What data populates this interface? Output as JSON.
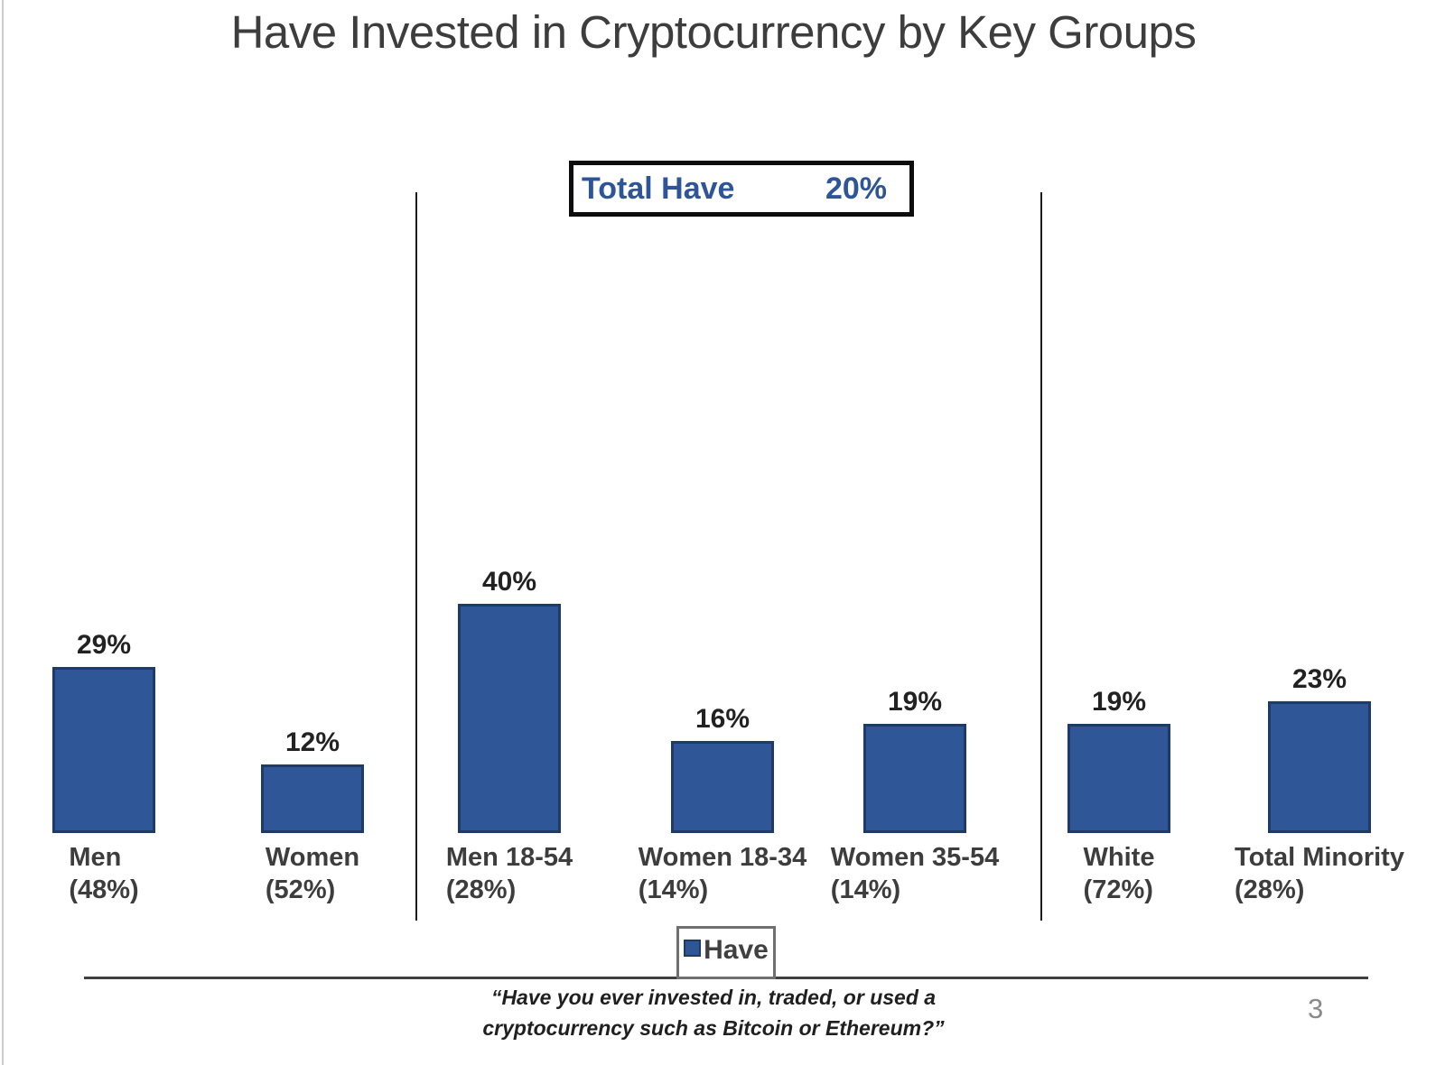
{
  "title": "Have Invested in Cryptocurrency by Key Groups",
  "summary_box": {
    "label": "Total Have",
    "value": "20%"
  },
  "legend": {
    "label": "Have",
    "swatch_color": "#2E5596"
  },
  "footnote": {
    "line1": "“Have you ever invested in, traded, or used a",
    "line2": "cryptocurrency such as Bitcoin or Ethereum?”"
  },
  "page_number": "3",
  "colors": {
    "bar_fill": "#2F5797",
    "bar_border": "#1E3A66",
    "accent_blue": "#2E5597",
    "title_text": "#3D3D3D"
  },
  "chart_data": {
    "type": "bar",
    "title": "Have Invested in Cryptocurrency by Key Groups",
    "xlabel": "",
    "ylabel": "",
    "ylim": [
      0,
      45
    ],
    "grid": false,
    "legend_position": "bottom",
    "legend_entries": [
      "Have"
    ],
    "annotations": [
      {
        "label": "Total Have",
        "value": 20,
        "value_label": "20%"
      }
    ],
    "categories": [
      "Men (48%)",
      "Women (52%)",
      "Men 18-54 (28%)",
      "Women 18-34 (14%)",
      "Women 35-54 (14%)",
      "White (72%)",
      "Total Minority (28%)"
    ],
    "series": [
      {
        "name": "Have",
        "values": [
          29,
          12,
          40,
          16,
          19,
          19,
          23
        ]
      }
    ],
    "groups": [
      {
        "label": "Men",
        "sub": "(48%)",
        "value": 29,
        "value_label": "29%"
      },
      {
        "label": "Women",
        "sub": "(52%)",
        "value": 12,
        "value_label": "12%"
      },
      {
        "label": "Men 18-54",
        "sub": "(28%)",
        "value": 40,
        "value_label": "40%"
      },
      {
        "label": "Women 18-34",
        "sub": "(14%)",
        "value": 16,
        "value_label": "16%"
      },
      {
        "label": "Women 35-54",
        "sub": "(14%)",
        "value": 19,
        "value_label": "19%"
      },
      {
        "label": "White",
        "sub": "(72%)",
        "value": 19,
        "value_label": "19%"
      },
      {
        "label": "Total Minority",
        "sub": "(28%)",
        "value": 23,
        "value_label": "23%"
      }
    ],
    "section_dividers_after": [
      "Women (52%)",
      "Women 35-54 (14%)"
    ]
  }
}
